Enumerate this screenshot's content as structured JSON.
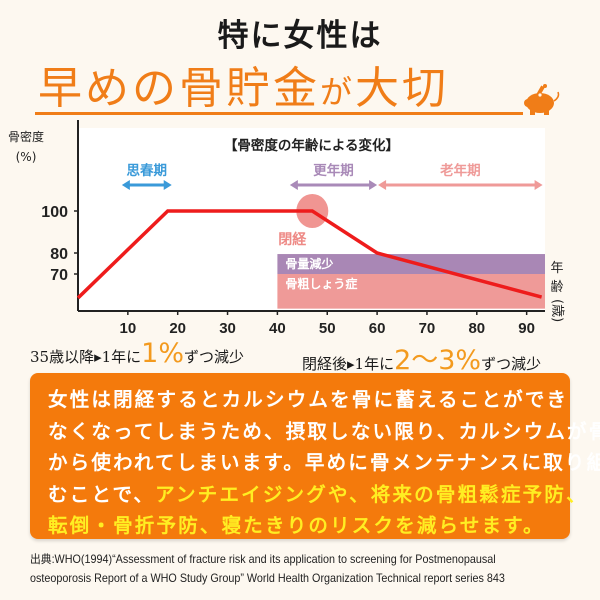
{
  "header": {
    "title": "特に女性は",
    "subtitle_parts": [
      "早めの骨貯金",
      "が",
      "大切"
    ]
  },
  "chart_data": {
    "type": "line",
    "title": "【骨密度の年齢による変化】",
    "ylabel": [
      "骨密度",
      "(%)"
    ],
    "xlabel": [
      "年",
      "齢",
      "(歳)"
    ],
    "xlim": [
      0,
      93.5
    ],
    "ylim": [
      53.5,
      114
    ],
    "xticks": [
      10,
      20,
      30,
      40,
      50,
      60,
      70,
      80,
      90
    ],
    "yticks": [
      100,
      80,
      70
    ],
    "series": [
      {
        "name": "骨密度",
        "color": "#ee1c1c",
        "x": [
          0,
          18,
          47,
          60,
          93
        ],
        "y": [
          58.6,
          100,
          100,
          80,
          59
        ]
      }
    ],
    "periods": [
      {
        "label": "思春期",
        "from": 8.8,
        "to": 18.8,
        "color": "#3a9ad9"
      },
      {
        "label": "更年期",
        "from": 42.5,
        "to": 60,
        "color": "#a98ab8"
      },
      {
        "label": "老年期",
        "from": 60.2,
        "to": 93.2,
        "color": "#ef9a98"
      }
    ],
    "bands": [
      {
        "label": "骨量減少",
        "from_y": 79.5,
        "to_y": 70,
        "from_x": 40,
        "color": "#a987b5"
      },
      {
        "label": "骨粗しょう症",
        "from_y": 70,
        "to_y": 53.5,
        "from_x": 40,
        "color": "#ef9a98"
      }
    ],
    "annotation": {
      "label": "閉経",
      "x": 47,
      "y": 100,
      "color": "#ee8a86"
    }
  },
  "captions": [
    {
      "pre": "35歳以降▸1年に",
      "big": "1%",
      "post": "ずつ減少"
    },
    {
      "pre": "閉経後▸1年に",
      "big": "2〜3%",
      "post": "ずつ減少"
    }
  ],
  "body_lines": [
    [
      {
        "t": "女性は閉経するとカルシウムを骨に蓄えることができ",
        "h": false
      }
    ],
    [
      {
        "t": "なくなってしまうため、摂取しない限り、カルシウムが骨",
        "h": false
      }
    ],
    [
      {
        "t": "から使われてしまいます。早めに骨メンテナンスに取り組",
        "h": false
      }
    ],
    [
      {
        "t": "むことで、",
        "h": false
      },
      {
        "t": "アンチエイジングや、将来の骨粗鬆症予防、",
        "h": true
      }
    ],
    [
      {
        "t": "転倒・骨折予防、寝たきりのリスクを減らせます。",
        "h": true
      }
    ]
  ],
  "source": [
    "出典:WHO(1994)“Assessment of fracture risk and its application to screening for Postmenopausal",
    "osteoporosis Report of a WHO Study Group” World Health Organization Technical report series 843"
  ],
  "colors": {
    "accent": "#f07d18",
    "box": "#f47a0c",
    "highlight": "#ffee22",
    "line": "#ee1c1c"
  }
}
